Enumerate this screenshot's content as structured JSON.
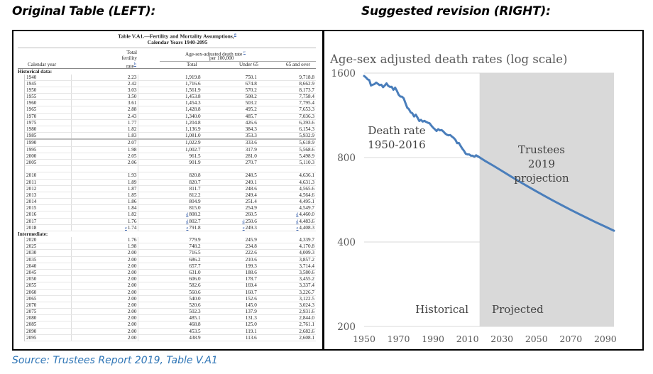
{
  "headings": {
    "left": "Original Table (LEFT):",
    "right": "Suggested revision (RIGHT):",
    "source": "Source: Trustees Report 2019, Table V.A1"
  },
  "table": {
    "title_line1": "Table V.A1.—Fertility and Mortality Assumptions,",
    "title_line1_fn": "a",
    "title_line2": "Calendar Years 1940-2095",
    "headers": {
      "calendar_year": "Calendar year",
      "tfr_line1": "Total",
      "tfr_line2": "fertility",
      "tfr_line3": "rate",
      "tfr_fn": "b",
      "death_rate_line1": "Age-sex-adjusted death rate",
      "death_rate_fn": "c",
      "death_rate_line2": "per 100,000",
      "total": "Total",
      "under65": "Under 65",
      "over65": "65 and over"
    },
    "sections": [
      {
        "label": "Historical data:",
        "rows": [
          {
            "year": "1940",
            "tfr": "2.23",
            "total": "1,919.8",
            "under65": "750.1",
            "over65": "9,718.8"
          },
          {
            "year": "1945",
            "tfr": "2.42",
            "total": "1,716.6",
            "under65": "674.8",
            "over65": "8,662.9"
          },
          {
            "year": "1950",
            "tfr": "3.03",
            "total": "1,561.9",
            "under65": "570.2",
            "over65": "8,173.7"
          },
          {
            "year": "1955",
            "tfr": "3.50",
            "total": "1,453.8",
            "under65": "508.2",
            "over65": "7,758.4"
          },
          {
            "year": "1960",
            "tfr": "3.61",
            "total": "1,454.3",
            "under65": "503.2",
            "over65": "7,795.4"
          },
          {
            "year": "1965",
            "tfr": "2.88",
            "total": "1,428.8",
            "under65": "495.2",
            "over65": "7,653.3"
          },
          {
            "year": "1970",
            "tfr": "2.43",
            "total": "1,340.0",
            "under65": "485.7",
            "over65": "7,036.3"
          },
          {
            "year": "1975",
            "tfr": "1.77",
            "total": "1,204.8",
            "under65": "426.6",
            "over65": "6,393.6"
          },
          {
            "year": "1980",
            "tfr": "1.82",
            "total": "1,136.9",
            "under65": "384.3",
            "over65": "6,154.3"
          },
          {
            "year": "1985",
            "tfr": "1.83",
            "total": "1,081.0",
            "under65": "353.3",
            "over65": "5,932.9",
            "thick": true
          },
          {
            "year": "1990",
            "tfr": "2.07",
            "total": "1,022.9",
            "under65": "333.6",
            "over65": "5,618.9"
          },
          {
            "year": "1995",
            "tfr": "1.98",
            "total": "1,002.7",
            "under65": "317.9",
            "over65": "5,568.6"
          },
          {
            "year": "2000",
            "tfr": "2.05",
            "total": "961.5",
            "under65": "281.0",
            "over65": "5,498.9"
          },
          {
            "year": "2005",
            "tfr": "2.06",
            "total": "901.9",
            "under65": "270.7",
            "over65": "5,110.3"
          },
          {
            "year": "",
            "tfr": "",
            "total": "",
            "under65": "",
            "over65": "",
            "gap": true
          },
          {
            "year": "2010",
            "tfr": "1.93",
            "total": "820.8",
            "under65": "248.5",
            "over65": "4,636.1"
          },
          {
            "year": "2011",
            "tfr": "1.89",
            "total": "820.7",
            "under65": "249.1",
            "over65": "4,631.3"
          },
          {
            "year": "2012",
            "tfr": "1.87",
            "total": "811.7",
            "under65": "248.6",
            "over65": "4,565.6"
          },
          {
            "year": "2013",
            "tfr": "1.85",
            "total": "812.2",
            "under65": "249.4",
            "over65": "4,564.6"
          },
          {
            "year": "2014",
            "tfr": "1.86",
            "total": "804.9",
            "under65": "251.4",
            "over65": "4,495.1"
          },
          {
            "year": "2015",
            "tfr": "1.84",
            "total": "815.0",
            "under65": "254.9",
            "over65": "4,549.7"
          },
          {
            "year": "2016",
            "tfr": "1.82",
            "total": "808.2",
            "total_fn": "d",
            "under65": "260.5",
            "over65": "4,460.0",
            "over65_fn": "d"
          },
          {
            "year": "2017",
            "tfr": "1.76",
            "total": "802.7",
            "total_fn": "d",
            "under65": "250.6",
            "under65_fn": "d",
            "over65": "4,483.6",
            "over65_fn": "d"
          },
          {
            "year": "2018",
            "tfr": "1.74",
            "tfr_fn": "e",
            "total": "791.8",
            "total_fn": "e",
            "under65": "249.3",
            "under65_fn": "e",
            "over65": "4,408.3",
            "over65_fn": "e"
          }
        ]
      },
      {
        "label": "Intermediate:",
        "rows": [
          {
            "year": "2020",
            "tfr": "1.76",
            "total": "779.9",
            "under65": "245.9",
            "over65": "4,339.7"
          },
          {
            "year": "2025",
            "tfr": "1.98",
            "total": "748.2",
            "under65": "234.8",
            "over65": "4,170.8"
          },
          {
            "year": "2030",
            "tfr": "2.00",
            "total": "716.5",
            "under65": "222.6",
            "over65": "4,009.3"
          },
          {
            "year": "2035",
            "tfr": "2.00",
            "total": "686.2",
            "under65": "210.6",
            "over65": "3,857.2"
          },
          {
            "year": "2040",
            "tfr": "2.00",
            "total": "657.7",
            "under65": "199.3",
            "over65": "3,714.4"
          },
          {
            "year": "2045",
            "tfr": "2.00",
            "total": "631.0",
            "under65": "188.6",
            "over65": "3,580.6"
          },
          {
            "year": "2050",
            "tfr": "2.00",
            "total": "606.0",
            "under65": "178.7",
            "over65": "3,455.2"
          },
          {
            "year": "2055",
            "tfr": "2.00",
            "total": "582.6",
            "under65": "169.4",
            "over65": "3,337.4"
          },
          {
            "year": "2060",
            "tfr": "2.00",
            "total": "560.6",
            "under65": "160.7",
            "over65": "3,226.7"
          },
          {
            "year": "2065",
            "tfr": "2.00",
            "total": "540.0",
            "under65": "152.6",
            "over65": "3,122.5"
          },
          {
            "year": "2070",
            "tfr": "2.00",
            "total": "520.6",
            "under65": "145.0",
            "over65": "3,024.3"
          },
          {
            "year": "2075",
            "tfr": "2.00",
            "total": "502.3",
            "under65": "137.9",
            "over65": "2,931.6"
          },
          {
            "year": "2080",
            "tfr": "2.00",
            "total": "485.1",
            "under65": "131.3",
            "over65": "2,844.0"
          },
          {
            "year": "2085",
            "tfr": "2.00",
            "total": "468.8",
            "under65": "125.0",
            "over65": "2,761.1"
          },
          {
            "year": "2090",
            "tfr": "2.00",
            "total": "453.5",
            "under65": "119.1",
            "over65": "2,682.6"
          },
          {
            "year": "2095",
            "tfr": "2.00",
            "total": "438.9",
            "under65": "113.6",
            "over65": "2,608.1"
          }
        ]
      }
    ]
  },
  "chart_data": {
    "type": "line",
    "title": "Age-sex adjusted death rates (log scale)",
    "xlabel": "",
    "ylabel": "",
    "yscale": "log",
    "ylim": [
      200,
      1600
    ],
    "xlim": [
      1950,
      2095
    ],
    "yticks": [
      200,
      400,
      800,
      1600
    ],
    "ytick_labels": [
      "200",
      "400",
      "800",
      "1600"
    ],
    "xticks": [
      1950,
      1970,
      1990,
      2010,
      2030,
      2050,
      2070,
      2090
    ],
    "xtick_labels": [
      "1950",
      "1970",
      "1990",
      "2010",
      "2030",
      "2050",
      "2070",
      "2090"
    ],
    "grid": "horizontal",
    "shaded_region": {
      "from": 2017,
      "to": 2095,
      "color": "#d9d9d9"
    },
    "line_color": "#4a7ebb",
    "annotations": {
      "historical_series": [
        "Death rate",
        "1950-2016"
      ],
      "projection_series": [
        "Trustees",
        "2019",
        "projection"
      ],
      "historical_region": "Historical",
      "projected_region": "Projected"
    },
    "series": [
      {
        "name": "Historical death rate 1950-2016",
        "x": [
          1950,
          1951,
          1952,
          1953,
          1954,
          1955,
          1956,
          1957,
          1958,
          1959,
          1960,
          1961,
          1962,
          1963,
          1964,
          1965,
          1966,
          1967,
          1968,
          1969,
          1970,
          1971,
          1972,
          1973,
          1974,
          1975,
          1976,
          1977,
          1978,
          1979,
          1980,
          1981,
          1982,
          1983,
          1984,
          1985,
          1986,
          1987,
          1988,
          1989,
          1990,
          1991,
          1992,
          1993,
          1994,
          1995,
          1996,
          1997,
          1998,
          1999,
          2000,
          2001,
          2002,
          2003,
          2004,
          2005,
          2006,
          2007,
          2008,
          2009,
          2010,
          2011,
          2012,
          2013,
          2014,
          2015,
          2016
        ],
        "values": [
          1562,
          1545,
          1520,
          1510,
          1445,
          1454,
          1462,
          1480,
          1465,
          1450,
          1454,
          1425,
          1445,
          1470,
          1440,
          1429,
          1430,
          1395,
          1420,
          1385,
          1340,
          1320,
          1318,
          1300,
          1250,
          1205,
          1190,
          1160,
          1150,
          1120,
          1137,
          1110,
          1080,
          1090,
          1075,
          1081,
          1072,
          1065,
          1060,
          1040,
          1023,
          1010,
          995,
          1010,
          1000,
          1003,
          990,
          975,
          965,
          960,
          962,
          950,
          940,
          925,
          900,
          902,
          880,
          860,
          845,
          825,
          821,
          821,
          812,
          812,
          805,
          815,
          808
        ]
      },
      {
        "name": "Trustees 2019 projection",
        "x": [
          2016,
          2020,
          2025,
          2030,
          2035,
          2040,
          2045,
          2050,
          2055,
          2060,
          2065,
          2070,
          2075,
          2080,
          2085,
          2090,
          2095
        ],
        "values": [
          808.2,
          779.9,
          748.2,
          716.5,
          686.2,
          657.7,
          631.0,
          606.0,
          582.6,
          560.6,
          540.0,
          520.6,
          502.3,
          485.1,
          468.8,
          453.5,
          438.9
        ]
      }
    ]
  }
}
